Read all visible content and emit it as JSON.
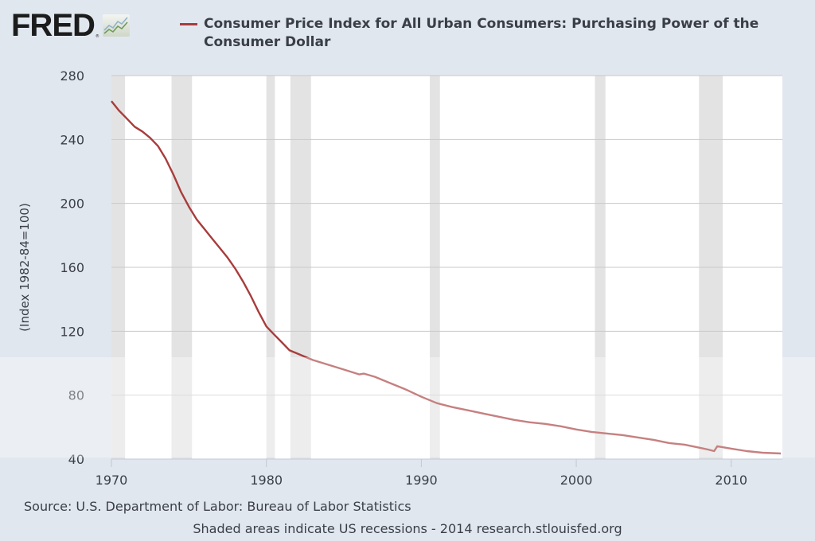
{
  "header": {
    "logo_text": "FRED",
    "logo_mark": "®",
    "logo_icon": "line-chart-icon"
  },
  "legend": {
    "series_label": "Consumer Price Index for All Urban Consumers: Purchasing Power of the Consumer Dollar",
    "color": "#a83c3c"
  },
  "footer": {
    "source": "Source: U.S. Department of Labor: Bureau of Labor Statistics",
    "note": "Shaded areas indicate US recessions - 2014 research.stlouisfed.org"
  },
  "colors": {
    "line": "#a83c3c",
    "recession": "#e3e3e3",
    "grid": "#c8c8c8",
    "plot_bg": "#ffffff",
    "page_bg": "#e1e7ef"
  },
  "chart_data": {
    "type": "line",
    "title": "Consumer Price Index for All Urban Consumers: Purchasing Power of the Consumer Dollar",
    "xlabel": "",
    "ylabel": "(Index 1982-84=100)",
    "xlim": [
      1970,
      2013.3
    ],
    "ylim": [
      40,
      280
    ],
    "x_ticks": [
      1970,
      1980,
      1990,
      2000,
      2010
    ],
    "y_ticks": [
      40,
      80,
      120,
      160,
      200,
      240,
      280
    ],
    "grid": true,
    "legend_position": "top",
    "series": [
      {
        "name": "Consumer Price Index for All Urban Consumers: Purchasing Power of the Consumer Dollar",
        "x": [
          1970.0,
          1970.5,
          1971.0,
          1971.5,
          1972.0,
          1972.5,
          1973.0,
          1973.5,
          1974.0,
          1974.5,
          1975.0,
          1975.5,
          1976.0,
          1976.5,
          1977.0,
          1977.5,
          1978.0,
          1978.5,
          1979.0,
          1979.5,
          1980.0,
          1980.5,
          1981.0,
          1981.5,
          1982.0,
          1982.5,
          1983.0,
          1984.0,
          1985.0,
          1986.0,
          1986.3,
          1987.0,
          1988.0,
          1989.0,
          1990.0,
          1991.0,
          1992.0,
          1993.0,
          1994.0,
          1995.0,
          1996.0,
          1997.0,
          1998.0,
          1999.0,
          2000.0,
          2001.0,
          2002.0,
          2003.0,
          2004.0,
          2005.0,
          2006.0,
          2007.0,
          2008.0,
          2008.5,
          2008.9,
          2009.1,
          2010.0,
          2011.0,
          2012.0,
          2013.2
        ],
        "values": [
          264,
          258,
          253,
          248,
          245,
          241,
          236,
          228,
          218,
          207,
          198,
          190,
          184,
          178,
          172,
          166,
          159,
          151,
          142,
          132,
          123,
          118,
          113,
          108,
          106,
          104,
          102,
          99,
          96,
          93,
          93.5,
          91.5,
          87.5,
          83.5,
          79,
          75,
          72.5,
          70.5,
          68.5,
          66.5,
          64.5,
          63,
          62,
          60.5,
          58.5,
          57,
          56,
          55,
          53.5,
          52,
          50,
          49,
          47,
          46,
          45,
          48,
          46.5,
          45,
          44,
          43.5
        ]
      }
    ],
    "recessions": [
      [
        1969.92,
        1970.88
      ],
      [
        1973.88,
        1975.2
      ],
      [
        1980.0,
        1980.55
      ],
      [
        1981.55,
        1982.88
      ],
      [
        1990.55,
        1991.2
      ],
      [
        2001.2,
        2001.88
      ],
      [
        2007.92,
        2009.45
      ]
    ]
  }
}
